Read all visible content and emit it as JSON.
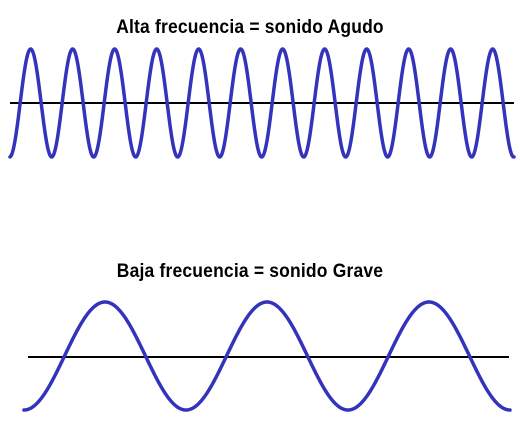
{
  "high": {
    "title": "Alta frecuencia = sonido Agudo",
    "cycles": 12
  },
  "low": {
    "title": "Baja frecuencia = sonido Grave",
    "cycles": 3
  },
  "colors": {
    "wave": "#3333bb",
    "axis": "#000000",
    "background": "#ffffff",
    "text": "#000000"
  }
}
